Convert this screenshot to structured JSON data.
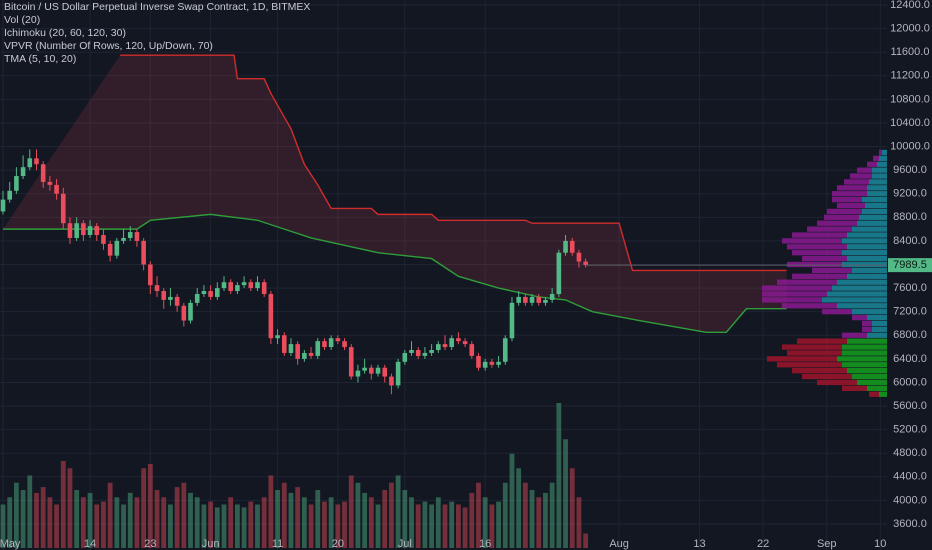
{
  "chart_data": {
    "type": "candlestick",
    "title": "Bitcoin / US Dollar Perpetual Inverse Swap Contract, 1D, BITMEX",
    "indicators": [
      "Vol (20)",
      "Ichimoku (20, 60, 120, 30)",
      "VPVR (Number Of Rows, 120, Up/Down, 70)",
      "TMA (5, 10, 20)"
    ],
    "colors": {
      "up": "#53b987",
      "down": "#eb4d5c"
    },
    "ylim": [
      3159,
      12485
    ],
    "yticks": [
      {
        "value": 3600,
        "label": "3600.0"
      },
      {
        "value": 4000,
        "label": "4000.0"
      },
      {
        "value": 4400,
        "label": "4400.0"
      },
      {
        "value": 4800,
        "label": "4800.0"
      },
      {
        "value": 5200,
        "label": "5200.0"
      },
      {
        "value": 5600,
        "label": "5600.0"
      },
      {
        "value": 6000,
        "label": "6000.0"
      },
      {
        "value": 6400,
        "label": "6400.0"
      },
      {
        "value": 6800,
        "label": "6800.0"
      },
      {
        "value": 7200,
        "label": "7200.0"
      },
      {
        "value": 7600,
        "label": "7600.0"
      },
      {
        "value": 8000,
        "label": "8000.0"
      },
      {
        "value": 8400,
        "label": "8400.0"
      },
      {
        "value": 8800,
        "label": "8800.0"
      },
      {
        "value": 9200,
        "label": "9200.0"
      },
      {
        "value": 9600,
        "label": "9600.0"
      },
      {
        "value": 10000,
        "label": "10000.0"
      },
      {
        "value": 10400,
        "label": "10400.0"
      },
      {
        "value": 10800,
        "label": "10800.0"
      },
      {
        "value": 11200,
        "label": "11200.0"
      },
      {
        "value": 11600,
        "label": "11600.0"
      },
      {
        "value": 12000,
        "label": "12000.0"
      },
      {
        "value": 12400,
        "label": "12400.0"
      }
    ],
    "xlim": [
      0,
      132
    ],
    "xticks": [
      {
        "value": 0,
        "label": "May"
      },
      {
        "value": 13,
        "label": "14"
      },
      {
        "value": 22,
        "label": "23"
      },
      {
        "value": 31,
        "label": "Jun"
      },
      {
        "value": 41,
        "label": "11"
      },
      {
        "value": 50,
        "label": "20"
      },
      {
        "value": 60,
        "label": "Jul"
      },
      {
        "value": 72,
        "label": "16"
      },
      {
        "value": 92,
        "label": "Aug"
      },
      {
        "value": 104,
        "label": "13"
      },
      {
        "value": 113.5,
        "label": "22"
      },
      {
        "value": 123,
        "label": "Sep"
      },
      {
        "value": 131,
        "label": "10"
      }
    ],
    "last_price": 7989.5,
    "ohlc": [
      [
        8900,
        9250,
        8850,
        9100
      ],
      [
        9100,
        9400,
        9050,
        9250
      ],
      [
        9250,
        9650,
        9200,
        9500
      ],
      [
        9500,
        9850,
        9450,
        9650
      ],
      [
        9650,
        9950,
        9600,
        9800
      ],
      [
        9800,
        9950,
        9600,
        9700
      ],
      [
        9700,
        9750,
        9300,
        9400
      ],
      [
        9400,
        9500,
        9250,
        9350
      ],
      [
        9350,
        9450,
        9100,
        9200
      ],
      [
        9200,
        9300,
        8600,
        8700
      ],
      [
        8700,
        8800,
        8350,
        8450
      ],
      [
        8450,
        8800,
        8400,
        8700
      ],
      [
        8700,
        8750,
        8400,
        8500
      ],
      [
        8500,
        8750,
        8450,
        8650
      ],
      [
        8650,
        8700,
        8400,
        8500
      ],
      [
        8500,
        8600,
        8250,
        8350
      ],
      [
        8350,
        8400,
        8050,
        8150
      ],
      [
        8150,
        8450,
        8100,
        8400
      ],
      [
        8400,
        8600,
        8350,
        8450
      ],
      [
        8450,
        8650,
        8400,
        8550
      ],
      [
        8550,
        8600,
        8300,
        8400
      ],
      [
        8400,
        8450,
        7900,
        8000
      ],
      [
        8000,
        8050,
        7500,
        7650
      ],
      [
        7650,
        7800,
        7450,
        7550
      ],
      [
        7550,
        7600,
        7250,
        7400
      ],
      [
        7400,
        7600,
        7300,
        7450
      ],
      [
        7450,
        7500,
        7200,
        7300
      ],
      [
        7300,
        7350,
        6950,
        7050
      ],
      [
        7050,
        7400,
        7000,
        7350
      ],
      [
        7350,
        7600,
        7300,
        7500
      ],
      [
        7500,
        7650,
        7450,
        7550
      ],
      [
        7550,
        7650,
        7400,
        7450
      ],
      [
        7450,
        7700,
        7400,
        7600
      ],
      [
        7600,
        7800,
        7550,
        7700
      ],
      [
        7700,
        7750,
        7500,
        7550
      ],
      [
        7550,
        7700,
        7500,
        7650
      ],
      [
        7650,
        7800,
        7600,
        7700
      ],
      [
        7700,
        7750,
        7550,
        7600
      ],
      [
        7600,
        7800,
        7550,
        7700
      ],
      [
        7700,
        7750,
        7450,
        7500
      ],
      [
        7500,
        7550,
        6650,
        6750
      ],
      [
        6750,
        6900,
        6650,
        6800
      ],
      [
        6800,
        6850,
        6450,
        6500
      ],
      [
        6500,
        6750,
        6450,
        6650
      ],
      [
        6650,
        6700,
        6300,
        6400
      ],
      [
        6400,
        6550,
        6350,
        6500
      ],
      [
        6500,
        6600,
        6400,
        6450
      ],
      [
        6450,
        6750,
        6400,
        6700
      ],
      [
        6700,
        6750,
        6550,
        6600
      ],
      [
        6600,
        6800,
        6550,
        6750
      ],
      [
        6750,
        6800,
        6650,
        6700
      ],
      [
        6700,
        6750,
        6550,
        6600
      ],
      [
        6600,
        6650,
        6050,
        6100
      ],
      [
        6100,
        6300,
        6000,
        6200
      ],
      [
        6200,
        6400,
        6150,
        6250
      ],
      [
        6250,
        6300,
        6050,
        6150
      ],
      [
        6150,
        6300,
        6100,
        6250
      ],
      [
        6250,
        6300,
        6000,
        6100
      ],
      [
        6100,
        6150,
        5800,
        5950
      ],
      [
        5950,
        6400,
        5900,
        6350
      ],
      [
        6350,
        6550,
        6300,
        6500
      ],
      [
        6500,
        6700,
        6450,
        6550
      ],
      [
        6550,
        6600,
        6400,
        6450
      ],
      [
        6450,
        6600,
        6400,
        6500
      ],
      [
        6500,
        6650,
        6450,
        6550
      ],
      [
        6550,
        6700,
        6500,
        6650
      ],
      [
        6650,
        6800,
        6550,
        6600
      ],
      [
        6600,
        6800,
        6550,
        6750
      ],
      [
        6750,
        6850,
        6650,
        6700
      ],
      [
        6700,
        6750,
        6600,
        6650
      ],
      [
        6650,
        6700,
        6400,
        6450
      ],
      [
        6450,
        6500,
        6200,
        6250
      ],
      [
        6250,
        6400,
        6200,
        6350
      ],
      [
        6350,
        6400,
        6250,
        6300
      ],
      [
        6300,
        6450,
        6250,
        6350
      ],
      [
        6350,
        6800,
        6300,
        6750
      ],
      [
        6750,
        7450,
        6700,
        7350
      ],
      [
        7350,
        7550,
        7300,
        7450
      ],
      [
        7450,
        7500,
        7300,
        7350
      ],
      [
        7350,
        7500,
        7300,
        7450
      ],
      [
        7450,
        7500,
        7300,
        7350
      ],
      [
        7350,
        7450,
        7300,
        7400
      ],
      [
        7400,
        7600,
        7350,
        7500
      ],
      [
        7500,
        8250,
        7450,
        8200
      ],
      [
        8200,
        8500,
        8150,
        8400
      ],
      [
        8400,
        8450,
        8150,
        8200
      ],
      [
        8200,
        8250,
        7950,
        8050
      ],
      [
        8050,
        8100,
        7950,
        7989.5
      ]
    ],
    "volume": [
      30,
      35,
      45,
      40,
      50,
      38,
      42,
      35,
      30,
      60,
      55,
      40,
      35,
      38,
      30,
      32,
      45,
      35,
      30,
      38,
      35,
      55,
      58,
      40,
      35,
      30,
      42,
      45,
      38,
      35,
      30,
      32,
      28,
      30,
      35,
      30,
      28,
      32,
      30,
      35,
      50,
      40,
      45,
      38,
      42,
      35,
      30,
      40,
      32,
      35,
      30,
      32,
      50,
      45,
      38,
      35,
      30,
      40,
      45,
      50,
      40,
      35,
      30,
      32,
      30,
      35,
      30,
      32,
      30,
      28,
      38,
      45,
      35,
      30,
      32,
      45,
      65,
      55,
      45,
      40,
      35,
      38,
      45,
      100,
      75,
      55,
      35,
      10
    ],
    "ichimoku": {
      "fill": "rgba(235,77,92,0.14)",
      "span_a": {
        "color": "#2f9e3a",
        "x": [
          0,
          20,
          22,
          31,
          38,
          42,
          46,
          52,
          56,
          64,
          68,
          74,
          80,
          84,
          88,
          95,
          100,
          105,
          108,
          111,
          117
        ],
        "values": [
          8600,
          8600,
          8750,
          8850,
          8750,
          8600,
          8450,
          8300,
          8200,
          8100,
          7800,
          7600,
          7450,
          7400,
          7200,
          7050,
          6950,
          6850,
          6850,
          7250,
          7250
        ]
      },
      "span_b": {
        "color": "#d12c2c",
        "x": [
          17.5,
          34.5,
          35,
          39,
          40,
          43,
          45,
          47,
          49,
          55,
          56,
          64,
          65,
          78,
          79,
          92,
          94,
          117
        ],
        "values": [
          11550,
          11550,
          11150,
          11150,
          10900,
          10300,
          9700,
          9350,
          8950,
          8950,
          8850,
          8850,
          8750,
          8750,
          8700,
          8700,
          7900,
          7900
        ]
      }
    },
    "vpvr": {
      "value_area": [
        5800,
        6800
      ],
      "colors": {
        "up": "#1a8a9c",
        "down": "#8a1a92",
        "va_up": "#14a01e",
        "va_down": "#a0142a"
      },
      "rows": [
        [
          9900,
          5,
          3
        ],
        [
          9800,
          8,
          6
        ],
        [
          9700,
          10,
          10
        ],
        [
          9600,
          15,
          15
        ],
        [
          9500,
          15,
          22
        ],
        [
          9400,
          18,
          25
        ],
        [
          9300,
          20,
          30
        ],
        [
          9200,
          20,
          35
        ],
        [
          9100,
          25,
          30
        ],
        [
          9000,
          22,
          28
        ],
        [
          8900,
          25,
          35
        ],
        [
          8800,
          28,
          35
        ],
        [
          8700,
          30,
          40
        ],
        [
          8600,
          35,
          45
        ],
        [
          8500,
          40,
          55
        ],
        [
          8400,
          45,
          60
        ],
        [
          8300,
          40,
          60
        ],
        [
          8200,
          45,
          50
        ],
        [
          8100,
          40,
          45
        ],
        [
          8000,
          45,
          55
        ],
        [
          7900,
          35,
          40
        ],
        [
          7800,
          40,
          55
        ],
        [
          7700,
          50,
          60
        ],
        [
          7600,
          55,
          70
        ],
        [
          7500,
          60,
          65
        ],
        [
          7400,
          65,
          60
        ],
        [
          7300,
          50,
          55
        ],
        [
          7200,
          35,
          30
        ],
        [
          7100,
          20,
          15
        ],
        [
          7000,
          15,
          10
        ],
        [
          6900,
          15,
          10
        ],
        [
          6800,
          20,
          25
        ],
        [
          6700,
          40,
          50
        ],
        [
          6600,
          45,
          60
        ],
        [
          6500,
          45,
          55
        ],
        [
          6400,
          50,
          70
        ],
        [
          6300,
          45,
          65
        ],
        [
          6200,
          40,
          55
        ],
        [
          6100,
          35,
          50
        ],
        [
          6000,
          30,
          40
        ],
        [
          5900,
          20,
          25
        ],
        [
          5800,
          8,
          10
        ]
      ]
    }
  }
}
